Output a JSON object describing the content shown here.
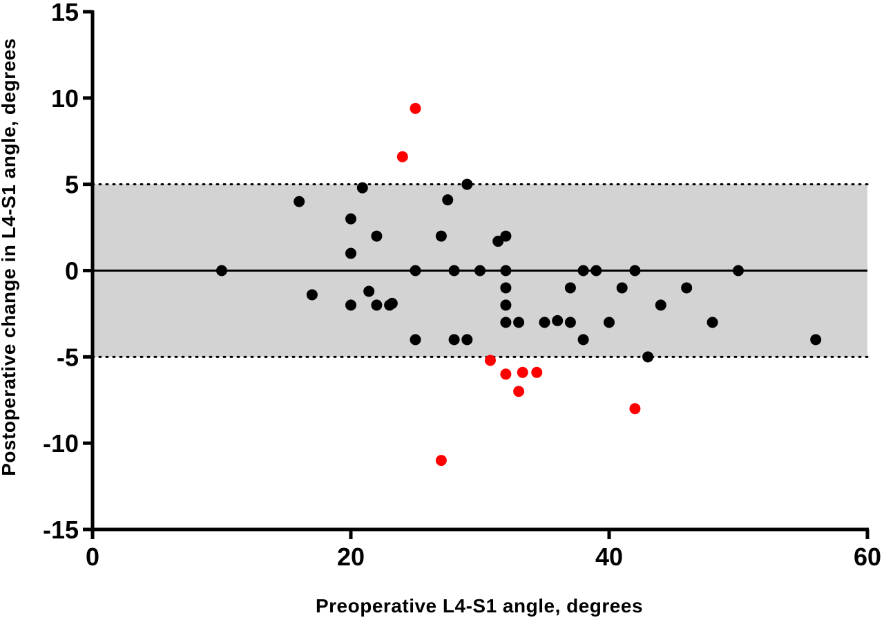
{
  "chart_data": {
    "type": "scatter",
    "title": "",
    "xlabel": "Preoperative L4-S1 angle, degrees",
    "ylabel": "Postoperative change in L4-S1 angle, degrees",
    "xlim": [
      0,
      60
    ],
    "ylim": [
      -15,
      15
    ],
    "x_ticks": [
      0,
      20,
      40,
      60
    ],
    "y_ticks": [
      -15,
      -10,
      -5,
      0,
      5,
      10,
      15
    ],
    "x_tick_labels": [
      "0",
      "20",
      "40",
      "60"
    ],
    "y_tick_labels": [
      "-15",
      "-10",
      "-5",
      "0",
      "5",
      "10",
      "15"
    ],
    "band": {
      "lower": -5,
      "upper": 5,
      "color": "#d3d3d3"
    },
    "reference_line": 0,
    "series": [
      {
        "color": "#000000",
        "points": [
          [
            10,
            0
          ],
          [
            16,
            4
          ],
          [
            17,
            -1.4
          ],
          [
            20,
            3
          ],
          [
            20,
            1
          ],
          [
            20,
            -2
          ],
          [
            20.9,
            4.8
          ],
          [
            21.4,
            -1.2
          ],
          [
            22,
            2
          ],
          [
            22,
            -2
          ],
          [
            23,
            -2
          ],
          [
            23.2,
            -1.9
          ],
          [
            25,
            0
          ],
          [
            25,
            -4
          ],
          [
            27,
            2
          ],
          [
            27.5,
            4.1
          ],
          [
            28,
            0
          ],
          [
            28,
            -4
          ],
          [
            29,
            5
          ],
          [
            29,
            -4
          ],
          [
            30,
            0
          ],
          [
            31.4,
            1.7
          ],
          [
            32,
            2
          ],
          [
            32,
            0
          ],
          [
            32,
            -1
          ],
          [
            32,
            -2
          ],
          [
            32,
            -3
          ],
          [
            33,
            -3
          ],
          [
            35,
            -3
          ],
          [
            36,
            -2.9
          ],
          [
            37,
            -1
          ],
          [
            37,
            -3
          ],
          [
            38,
            0
          ],
          [
            38,
            -4
          ],
          [
            39,
            0
          ],
          [
            40,
            -3
          ],
          [
            41,
            -1
          ],
          [
            42,
            0
          ],
          [
            43,
            -5
          ],
          [
            44,
            -2
          ],
          [
            46,
            -1
          ],
          [
            48,
            -3
          ],
          [
            50,
            0
          ],
          [
            56,
            -4
          ]
        ]
      },
      {
        "color": "#ff0000",
        "points": [
          [
            24,
            6.6
          ],
          [
            25,
            9.4
          ],
          [
            27,
            -11
          ],
          [
            30.8,
            -5.2
          ],
          [
            32,
            -6
          ],
          [
            33,
            -7
          ],
          [
            33.3,
            -5.9
          ],
          [
            34.4,
            -5.9
          ],
          [
            42,
            -8
          ]
        ]
      }
    ]
  }
}
